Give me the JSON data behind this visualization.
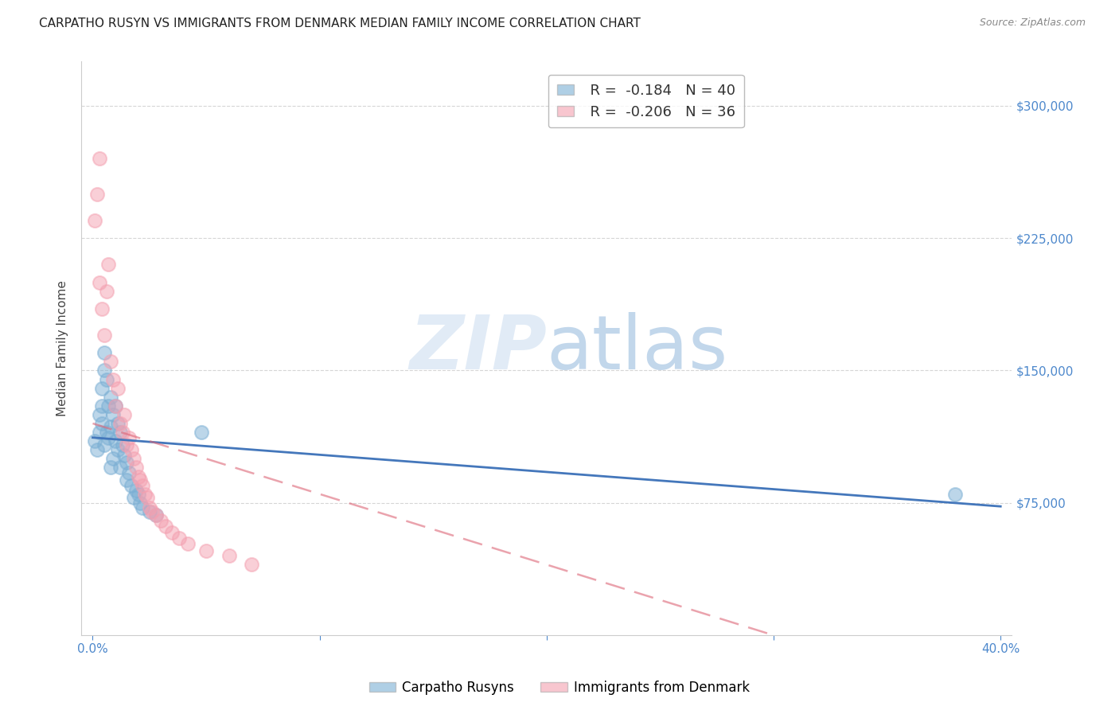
{
  "title": "CARPATHO RUSYN VS IMMIGRANTS FROM DENMARK MEDIAN FAMILY INCOME CORRELATION CHART",
  "source": "Source: ZipAtlas.com",
  "xlabel": "",
  "ylabel": "Median Family Income",
  "xlim": [
    0.0,
    0.4
  ],
  "ylim": [
    0,
    325000
  ],
  "yticks": [
    0,
    75000,
    150000,
    225000,
    300000
  ],
  "ytick_labels": [
    "",
    "$75,000",
    "$150,000",
    "$225,000",
    "$300,000"
  ],
  "xticks": [
    0.0,
    0.1,
    0.2,
    0.3,
    0.4
  ],
  "xtick_labels": [
    "0.0%",
    "",
    "",
    "",
    "40.0%"
  ],
  "background_color": "#ffffff",
  "watermark_zip": "ZIP",
  "watermark_atlas": "atlas",
  "blue_R": -0.184,
  "blue_N": 40,
  "pink_R": -0.206,
  "pink_N": 36,
  "blue_color": "#7bafd4",
  "pink_color": "#f4a0b0",
  "blue_scatter_x": [
    0.001,
    0.002,
    0.003,
    0.003,
    0.004,
    0.004,
    0.004,
    0.005,
    0.005,
    0.005,
    0.006,
    0.006,
    0.007,
    0.007,
    0.008,
    0.008,
    0.008,
    0.009,
    0.009,
    0.01,
    0.01,
    0.011,
    0.011,
    0.012,
    0.012,
    0.013,
    0.014,
    0.015,
    0.015,
    0.016,
    0.017,
    0.018,
    0.019,
    0.02,
    0.021,
    0.022,
    0.025,
    0.028,
    0.048,
    0.38
  ],
  "blue_scatter_y": [
    110000,
    105000,
    125000,
    115000,
    140000,
    130000,
    120000,
    160000,
    150000,
    108000,
    145000,
    115000,
    130000,
    112000,
    135000,
    118000,
    95000,
    125000,
    100000,
    130000,
    110000,
    120000,
    105000,
    115000,
    95000,
    108000,
    102000,
    98000,
    88000,
    92000,
    85000,
    78000,
    82000,
    80000,
    75000,
    72000,
    70000,
    68000,
    115000,
    80000
  ],
  "pink_scatter_x": [
    0.001,
    0.002,
    0.003,
    0.003,
    0.004,
    0.005,
    0.006,
    0.007,
    0.008,
    0.009,
    0.01,
    0.011,
    0.012,
    0.013,
    0.014,
    0.015,
    0.016,
    0.017,
    0.018,
    0.019,
    0.02,
    0.021,
    0.022,
    0.023,
    0.024,
    0.025,
    0.026,
    0.028,
    0.03,
    0.032,
    0.035,
    0.038,
    0.042,
    0.05,
    0.06,
    0.07
  ],
  "pink_scatter_y": [
    235000,
    250000,
    270000,
    200000,
    185000,
    170000,
    195000,
    210000,
    155000,
    145000,
    130000,
    140000,
    120000,
    115000,
    125000,
    108000,
    112000,
    105000,
    100000,
    95000,
    90000,
    88000,
    85000,
    80000,
    78000,
    72000,
    70000,
    68000,
    65000,
    62000,
    58000,
    55000,
    52000,
    48000,
    45000,
    40000
  ],
  "blue_trend_x": [
    0.0,
    0.4
  ],
  "blue_trend_y": [
    112000,
    73000
  ],
  "pink_trend_x": [
    0.0,
    0.3
  ],
  "pink_trend_y": [
    120000,
    0
  ],
  "axis_color": "#cccccc",
  "tick_label_color": "#4d88cc",
  "grid_color": "#cccccc",
  "title_fontsize": 11,
  "axis_label_fontsize": 11,
  "tick_fontsize": 11
}
